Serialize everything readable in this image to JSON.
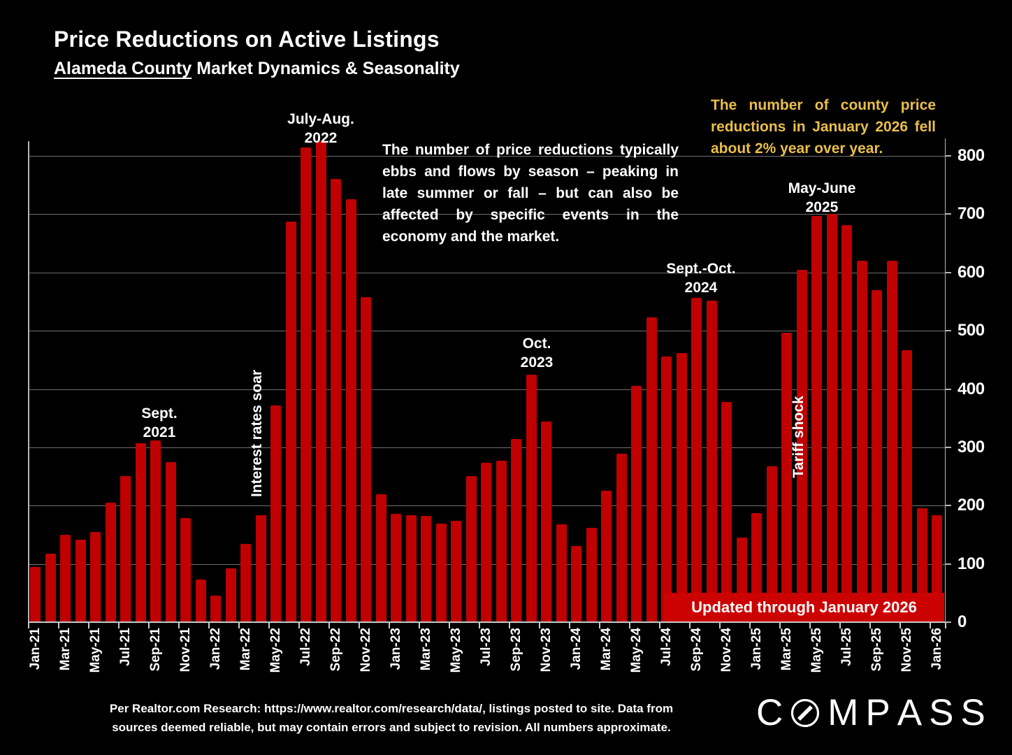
{
  "title": "Price Reductions on Active Listings",
  "subtitle": {
    "underlined": "Alameda County",
    "rest": " Market Dynamics & Seasonality"
  },
  "annotations": {
    "sep_2021": [
      "Sept.",
      "2021"
    ],
    "jul_aug_2022": [
      "July-Aug.",
      "2022"
    ],
    "interest_rates": "Interest rates soar",
    "oct_2023": [
      "Oct.",
      "2023"
    ],
    "sep_oct_2024": [
      "Sept.-Oct.",
      "2024"
    ],
    "may_june_2025": [
      "May-June",
      "2025"
    ],
    "tariff_shock": "Tariff shock",
    "seasonality_note": "The number of price reductions typically ebbs and flows by season – peaking in late summer or fall – but can also be affected by specific events in the economy and the market.",
    "yoy_note": "The number of county price reductions in January 2026 fell about 2% year over year.",
    "updated_banner": "Updated through January 2026"
  },
  "footer": {
    "line1": "Per Realtor.com Research:  https://www.realtor.com/research/data/, listings posted to site. Data from",
    "line2": "sources deemed reliable, but may contain errors and subject to revision. All numbers approximate."
  },
  "logo_text": "COMPASS",
  "colors": {
    "bar": "#c00000",
    "banner": "#cc0101",
    "accent_yellow": "#eabf4a",
    "grid": "#707070"
  },
  "chart_data": {
    "type": "bar",
    "title": "Price Reductions on Active Listings — Alameda County",
    "months": [
      "Jan-21",
      "Feb-21",
      "Mar-21",
      "Apr-21",
      "May-21",
      "Jun-21",
      "Jul-21",
      "Aug-21",
      "Sep-21",
      "Oct-21",
      "Nov-21",
      "Dec-21",
      "Jan-22",
      "Feb-22",
      "Mar-22",
      "Apr-22",
      "May-22",
      "Jun-22",
      "Jul-22",
      "Aug-22",
      "Sep-22",
      "Oct-22",
      "Nov-22",
      "Dec-22",
      "Jan-23",
      "Feb-23",
      "Mar-23",
      "Apr-23",
      "May-23",
      "Jun-23",
      "Jul-23",
      "Aug-23",
      "Sep-23",
      "Oct-23",
      "Nov-23",
      "Dec-23",
      "Jan-24",
      "Feb-24",
      "Mar-24",
      "Apr-24",
      "May-24",
      "Jun-24",
      "Jul-24",
      "Aug-24",
      "Sep-24",
      "Oct-24",
      "Nov-24",
      "Dec-24",
      "Jan-25",
      "Feb-25",
      "Mar-25",
      "Apr-25",
      "May-25",
      "Jun-25",
      "Jul-25",
      "Aug-25",
      "Sep-25",
      "Oct-25",
      "Nov-25",
      "Dec-25",
      "Jan-26"
    ],
    "values": [
      95,
      117,
      150,
      141,
      155,
      205,
      251,
      307,
      312,
      275,
      179,
      73,
      46,
      93,
      134,
      183,
      372,
      687,
      815,
      825,
      760,
      726,
      558,
      220,
      186,
      183,
      182,
      169,
      174,
      251,
      274,
      277,
      314,
      425,
      344,
      168,
      131,
      162,
      226,
      289,
      406,
      523,
      456,
      462,
      557,
      552,
      378,
      145,
      187,
      267,
      497,
      605,
      697,
      700,
      681,
      620,
      570,
      620,
      466,
      196,
      184
    ],
    "yticks": [
      0,
      100,
      200,
      300,
      400,
      500,
      600,
      700,
      800
    ],
    "ylim": [
      0,
      830
    ],
    "xtick_every": 2,
    "grid": true,
    "legend": "none"
  }
}
